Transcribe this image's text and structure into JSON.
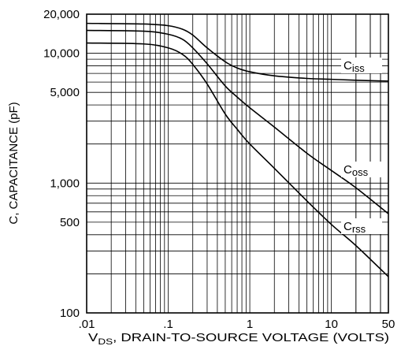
{
  "chart_data": {
    "type": "line",
    "title": "",
    "xlabel": "V_DS, DRAIN-TO-SOURCE VOLTAGE (VOLTS)",
    "xlabel_parts": {
      "prefix": "V",
      "sub": "DS",
      "rest": ", DRAIN-TO-SOURCE VOLTAGE (VOLTS)"
    },
    "ylabel": "C, CAPACITANCE (pF)",
    "x_scale": "log",
    "y_scale": "log",
    "xlim": [
      0.01,
      50
    ],
    "ylim": [
      100,
      20000
    ],
    "grid": true,
    "x_ticks": [
      ".01",
      ".1",
      "1",
      "10",
      "50"
    ],
    "x_tick_values": [
      0.01,
      0.1,
      1,
      10,
      50
    ],
    "y_ticks": [
      "20,000",
      "10,000",
      "5,000",
      "1,000",
      "500",
      "100"
    ],
    "y_tick_values": [
      20000,
      10000,
      5000,
      1000,
      500,
      100
    ],
    "series": [
      {
        "name": "Ciss",
        "label_main": "C",
        "label_sub": "iss",
        "x": [
          0.01,
          0.05,
          0.1,
          0.15,
          0.2,
          0.3,
          0.5,
          0.7,
          1,
          2,
          5,
          10,
          20,
          50
        ],
        "y": [
          17000,
          16800,
          16300,
          15300,
          13800,
          11000,
          8600,
          7700,
          7200,
          6700,
          6400,
          6300,
          6200,
          6100
        ]
      },
      {
        "name": "Coss",
        "label_main": "C",
        "label_sub": "oss",
        "x": [
          0.01,
          0.05,
          0.1,
          0.15,
          0.2,
          0.3,
          0.5,
          0.7,
          1,
          2,
          5,
          10,
          20,
          50
        ],
        "y": [
          15000,
          14800,
          14000,
          12800,
          11000,
          8300,
          5600,
          4600,
          3800,
          2700,
          1700,
          1250,
          920,
          580
        ]
      },
      {
        "name": "Crss",
        "label_main": "C",
        "label_sub": "rss",
        "x": [
          0.01,
          0.05,
          0.1,
          0.15,
          0.2,
          0.3,
          0.5,
          0.7,
          1,
          2,
          5,
          10,
          20,
          50
        ],
        "y": [
          12000,
          11800,
          11000,
          9800,
          8200,
          5800,
          3400,
          2600,
          2000,
          1300,
          730,
          480,
          330,
          190
        ]
      }
    ]
  }
}
